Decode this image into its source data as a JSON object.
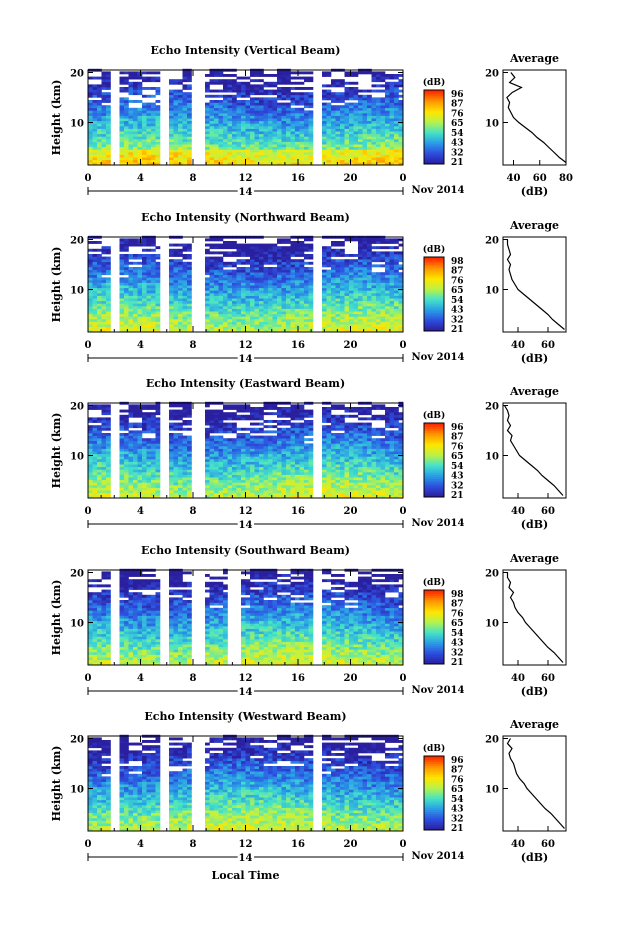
{
  "figure": {
    "x_label": "Local Time",
    "date_label": "Nov 2014",
    "day_label": "14"
  },
  "chart_data": [
    {
      "type": "heatmap",
      "title": "Echo Intensity (Vertical Beam)",
      "ylabel": "Height (km)",
      "x_ticks": [
        "0",
        "4",
        "8",
        "12",
        "16",
        "20",
        "0"
      ],
      "xlim": [
        0,
        24
      ],
      "y_ticks": [
        "20",
        "10"
      ],
      "ylim": [
        1.5,
        20.5
      ],
      "colorbar": {
        "unit": "(dB)",
        "labels": [
          "96",
          "87",
          "76",
          "65",
          "54",
          "43",
          "32",
          "21"
        ],
        "colors": [
          "#ff2a00",
          "#ff9a00",
          "#ffe600",
          "#b8f24a",
          "#45e3c8",
          "#2a9fe6",
          "#2d4fe0",
          "#2a1f9e"
        ]
      },
      "grid": false,
      "data_gaps_hours": [
        2.1,
        5.8,
        8.4,
        17.6
      ],
      "profile": {
        "title": "Average",
        "xlabel": "(dB)",
        "x_ticks": [
          "40",
          "60",
          "80"
        ],
        "xlim": [
          32,
          80
        ],
        "y_ticks": [
          "20",
          "10"
        ],
        "height_km": [
          20,
          19,
          18,
          17,
          16,
          15,
          14,
          13,
          12,
          11,
          10,
          9,
          8,
          7,
          6,
          5,
          4,
          3,
          2
        ],
        "values_db": [
          38,
          41,
          37,
          46,
          39,
          35,
          37,
          36,
          38,
          40,
          44,
          49,
          54,
          58,
          63,
          67,
          71,
          75,
          80
        ]
      }
    },
    {
      "type": "heatmap",
      "title": "Echo Intensity (Northward Beam)",
      "ylabel": "Height (km)",
      "x_ticks": [
        "0",
        "4",
        "8",
        "12",
        "16",
        "20",
        "0"
      ],
      "xlim": [
        0,
        24
      ],
      "y_ticks": [
        "20",
        "10"
      ],
      "ylim": [
        1.5,
        20.5
      ],
      "colorbar": {
        "unit": "(dB)",
        "labels": [
          "98",
          "87",
          "76",
          "65",
          "54",
          "43",
          "32",
          "21"
        ],
        "colors": [
          "#ff2a00",
          "#ff9a00",
          "#ffe600",
          "#b8f24a",
          "#45e3c8",
          "#2a9fe6",
          "#2d4fe0",
          "#2a1f9e"
        ]
      },
      "grid": false,
      "data_gaps_hours": [
        2.1,
        5.8,
        8.4,
        17.6
      ],
      "profile": {
        "title": "Average",
        "xlabel": "(dB)",
        "x_ticks": [
          "40",
          "60"
        ],
        "xlim": [
          30,
          72
        ],
        "y_ticks": [
          "20",
          "10"
        ],
        "height_km": [
          20,
          19,
          18,
          17,
          16,
          15,
          14,
          13,
          12,
          11,
          10,
          9,
          8,
          7,
          6,
          5,
          4,
          3,
          2
        ],
        "values_db": [
          33,
          33,
          34,
          35,
          33,
          35,
          34,
          35,
          36,
          38,
          40,
          44,
          48,
          52,
          56,
          60,
          63,
          67,
          71
        ]
      }
    },
    {
      "type": "heatmap",
      "title": "Echo Intensity (Eastward Beam)",
      "ylabel": "Height (km)",
      "x_ticks": [
        "0",
        "4",
        "8",
        "12",
        "16",
        "20",
        "0"
      ],
      "xlim": [
        0,
        24
      ],
      "y_ticks": [
        "20",
        "10"
      ],
      "ylim": [
        1.5,
        20.5
      ],
      "colorbar": {
        "unit": "(dB)",
        "labels": [
          "96",
          "87",
          "76",
          "65",
          "54",
          "43",
          "32",
          "21"
        ],
        "colors": [
          "#ff2a00",
          "#ff9a00",
          "#ffe600",
          "#b8f24a",
          "#45e3c8",
          "#2a9fe6",
          "#2d4fe0",
          "#2a1f9e"
        ]
      },
      "grid": false,
      "data_gaps_hours": [
        2.1,
        5.8,
        8.4,
        17.6
      ],
      "profile": {
        "title": "Average",
        "xlabel": "(dB)",
        "x_ticks": [
          "40",
          "60"
        ],
        "xlim": [
          30,
          72
        ],
        "y_ticks": [
          "20",
          "10"
        ],
        "height_km": [
          20,
          19,
          18,
          17,
          16,
          15,
          14,
          13,
          12,
          11,
          10,
          9,
          8,
          7,
          6,
          5,
          4,
          3,
          2
        ],
        "values_db": [
          31,
          33,
          34,
          33,
          35,
          33,
          36,
          35,
          37,
          39,
          41,
          45,
          49,
          53,
          56,
          60,
          64,
          67,
          70
        ]
      }
    },
    {
      "type": "heatmap",
      "title": "Echo Intensity (Southward Beam)",
      "ylabel": "Height (km)",
      "x_ticks": [
        "0",
        "4",
        "8",
        "12",
        "16",
        "20",
        "0"
      ],
      "xlim": [
        0,
        24
      ],
      "y_ticks": [
        "20",
        "10"
      ],
      "ylim": [
        1.5,
        20.5
      ],
      "colorbar": {
        "unit": "(dB)",
        "labels": [
          "98",
          "87",
          "76",
          "65",
          "54",
          "43",
          "32",
          "21"
        ],
        "colors": [
          "#ff2a00",
          "#ff9a00",
          "#ffe600",
          "#b8f24a",
          "#45e3c8",
          "#2a9fe6",
          "#2d4fe0",
          "#2a1f9e"
        ]
      },
      "grid": false,
      "data_gaps_hours": [
        2.1,
        5.8,
        8.4,
        11.1,
        17.6
      ],
      "profile": {
        "title": "Average",
        "xlabel": "(dB)",
        "x_ticks": [
          "40",
          "60"
        ],
        "xlim": [
          30,
          72
        ],
        "y_ticks": [
          "20",
          "10"
        ],
        "height_km": [
          20,
          19,
          18,
          17,
          16,
          15,
          14,
          13,
          12,
          11,
          10,
          9,
          8,
          7,
          6,
          5,
          4,
          3,
          2
        ],
        "values_db": [
          33,
          33,
          35,
          34,
          37,
          35,
          37,
          38,
          40,
          43,
          45,
          48,
          51,
          54,
          57,
          60,
          64,
          67,
          70
        ]
      }
    },
    {
      "type": "heatmap",
      "title": "Echo Intensity (Westward Beam)",
      "ylabel": "Height (km)",
      "x_ticks": [
        "0",
        "4",
        "8",
        "12",
        "16",
        "20",
        "0"
      ],
      "xlim": [
        0,
        24
      ],
      "y_ticks": [
        "20",
        "10"
      ],
      "ylim": [
        1.5,
        20.5
      ],
      "colorbar": {
        "unit": "(dB)",
        "labels": [
          "96",
          "87",
          "76",
          "65",
          "54",
          "43",
          "32",
          "21"
        ],
        "colors": [
          "#ff2a00",
          "#ff9a00",
          "#ffe600",
          "#b8f24a",
          "#45e3c8",
          "#2a9fe6",
          "#2d4fe0",
          "#2a1f9e"
        ]
      },
      "grid": false,
      "data_gaps_hours": [
        2.1,
        5.8,
        8.4,
        17.6
      ],
      "profile": {
        "title": "Average",
        "xlabel": "(dB)",
        "x_ticks": [
          "40",
          "60"
        ],
        "xlim": [
          30,
          72
        ],
        "y_ticks": [
          "20",
          "10"
        ],
        "height_km": [
          20,
          19,
          18,
          17,
          16,
          15,
          14,
          13,
          12,
          11,
          10,
          9,
          8,
          7,
          6,
          5,
          4,
          3,
          2
        ],
        "values_db": [
          35,
          33,
          36,
          34,
          35,
          37,
          38,
          39,
          41,
          44,
          46,
          49,
          52,
          55,
          58,
          62,
          65,
          68,
          71
        ]
      }
    }
  ]
}
